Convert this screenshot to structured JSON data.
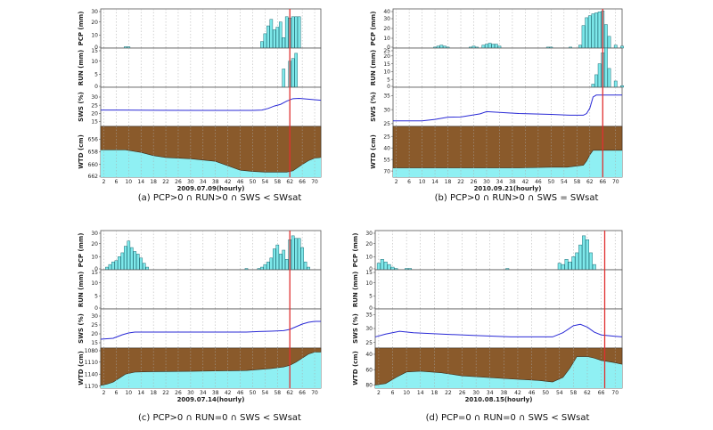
{
  "colors": {
    "bar_fill": "#7ee8ea",
    "bar_stroke": "#1f6f78",
    "sws_line": "#2a2ad6",
    "soil": "#8a5a2b",
    "water": "#8ff0f3",
    "event_line": "#e03030",
    "grid": "#a8a8a8"
  },
  "chart_data": [
    {
      "type": "bar",
      "id": "a",
      "caption": "(a) PCP>0 ∩ RUN>0 ∩ SWS < SWsat",
      "xlabel": "2009.07.09(hourly)",
      "x_ticks": [
        "2",
        "6",
        "10",
        "14",
        "18",
        "22",
        "26",
        "30",
        "34",
        "38",
        "42",
        "46",
        "50",
        "54",
        "58",
        "62",
        "66",
        "70"
      ],
      "x_range": [
        1,
        72
      ],
      "event_hour": 62,
      "pcp": {
        "ylabel": "PCP (mm)",
        "ylim": [
          0,
          30
        ],
        "yticks": [
          "30",
          "20",
          "10",
          "0"
        ],
        "hours": [
          9,
          10,
          53,
          54,
          55,
          56,
          57,
          58,
          59,
          60,
          61,
          62,
          63,
          64,
          65
        ],
        "values": [
          1,
          1,
          5,
          11,
          17,
          22,
          14,
          16,
          20,
          8,
          24,
          23,
          24,
          24,
          24
        ]
      },
      "run": {
        "ylabel": "RUN (mm)",
        "ylim": [
          0,
          15
        ],
        "yticks": [
          "15",
          "10",
          "5",
          "0"
        ],
        "hours": [
          60,
          62,
          63,
          64
        ],
        "values": [
          7,
          10,
          11,
          13
        ]
      },
      "sws": {
        "ylabel": "SWS (%)",
        "ylim": [
          12,
          36
        ],
        "yticks": [
          "30",
          "25",
          "20",
          "15"
        ],
        "x": [
          1,
          8,
          20,
          32,
          50,
          53,
          55,
          57,
          59,
          61,
          63,
          65,
          72
        ],
        "y": [
          22,
          22,
          21.9,
          21.8,
          21.8,
          22,
          23,
          24.5,
          25.5,
          27.5,
          29,
          29.2,
          28
        ]
      },
      "wtd": {
        "ylabel": "WTD (cm)",
        "ylim": [
          654,
          662
        ],
        "yticks": [
          "656",
          "658",
          "660",
          "662"
        ],
        "x": [
          1,
          9,
          14,
          18,
          22,
          30,
          38,
          46,
          50,
          54,
          58,
          61,
          63,
          66,
          68,
          70,
          72
        ],
        "y": [
          657.7,
          657.7,
          658.1,
          658.6,
          658.9,
          659.1,
          659.5,
          660.9,
          661.1,
          661.2,
          661.2,
          661.2,
          661.0,
          660.0,
          659.4,
          659.0,
          658.9
        ]
      }
    },
    {
      "type": "bar",
      "id": "b",
      "caption": "(b) PCP>0 ∩ RUN>0 ∩ SWS = SWsat",
      "xlabel": "2010.09.21(hourly)",
      "x_ticks": [
        "2",
        "6",
        "10",
        "14",
        "18",
        "22",
        "26",
        "30",
        "34",
        "38",
        "42",
        "46",
        "50",
        "54",
        "58",
        "62",
        "66",
        "70"
      ],
      "x_range": [
        1,
        72
      ],
      "event_hour": 66,
      "pcp": {
        "ylabel": "PCP (mm)",
        "ylim": [
          0,
          40
        ],
        "yticks": [
          "40",
          "30",
          "20",
          "10",
          "0"
        ],
        "hours": [
          14,
          15,
          16,
          17,
          18,
          25,
          26,
          27,
          29,
          30,
          31,
          32,
          33,
          34,
          49,
          50,
          56,
          59,
          60,
          61,
          62,
          63,
          64,
          65,
          66,
          67,
          68,
          70,
          72
        ],
        "values": [
          1,
          2,
          3,
          2,
          1,
          1,
          2,
          1,
          3,
          4,
          5,
          4,
          4,
          2,
          1,
          1,
          1,
          3,
          23,
          31,
          33,
          35,
          36,
          37,
          38,
          24,
          12,
          3,
          2
        ]
      },
      "run": {
        "ylabel": "RUN (mm)",
        "ylim": [
          0,
          25
        ],
        "yticks": [
          "25",
          "20",
          "15",
          "10",
          "5",
          "0"
        ],
        "hours": [
          63,
          64,
          65,
          66,
          67,
          68,
          70,
          72
        ],
        "values": [
          2,
          8,
          15,
          22,
          25,
          12,
          4,
          1
        ]
      },
      "sws": {
        "ylabel": "SWS (%)",
        "ylim": [
          24,
          38
        ],
        "yticks": [
          "35",
          "30",
          "25"
        ],
        "x": [
          1,
          10,
          14,
          18,
          22,
          28,
          30,
          34,
          40,
          50,
          56,
          60,
          61,
          62,
          63,
          64,
          72
        ],
        "y": [
          26,
          26,
          26.5,
          27.3,
          27.4,
          28.5,
          29.3,
          29,
          28.6,
          28.3,
          28,
          28,
          28.6,
          30.5,
          34.5,
          35.2,
          35.2
        ]
      },
      "wtd": {
        "ylabel": "WTD (cm)",
        "ylim": [
          12,
          78
        ],
        "yticks": [
          "25",
          "40",
          "55",
          "70"
        ],
        "x": [
          1,
          10,
          20,
          30,
          40,
          50,
          55,
          58,
          60,
          61,
          62,
          63,
          64,
          65,
          72
        ],
        "y": [
          66,
          66,
          66,
          66,
          66,
          65,
          65,
          63.5,
          62.5,
          57,
          49,
          43,
          43,
          43,
          43
        ]
      }
    },
    {
      "type": "bar",
      "id": "c",
      "caption": "(c) PCP>0 ∩ RUN=0 ∩ SWS < SWsat",
      "xlabel": "2009.07.14(hourly)",
      "x_ticks": [
        "2",
        "6",
        "10",
        "14",
        "18",
        "22",
        "26",
        "30",
        "34",
        "38",
        "42",
        "46",
        "50",
        "54",
        "58",
        "62",
        "66",
        "70"
      ],
      "x_range": [
        1,
        72
      ],
      "event_hour": 62,
      "pcp": {
        "ylabel": "PCP (mm)",
        "ylim": [
          0,
          30
        ],
        "yticks": [
          "30",
          "20",
          "10",
          "0"
        ],
        "hours": [
          3,
          4,
          5,
          6,
          7,
          8,
          9,
          10,
          11,
          12,
          13,
          14,
          15,
          16,
          48,
          52,
          53,
          54,
          55,
          56,
          57,
          58,
          59,
          60,
          61,
          62,
          63,
          64,
          65,
          66,
          67,
          68
        ],
        "values": [
          2,
          4,
          6,
          7,
          10,
          13,
          18,
          22,
          17,
          14,
          12,
          9,
          5,
          2,
          1,
          1,
          2,
          4,
          6,
          9,
          16,
          19,
          12,
          15,
          8,
          23,
          26,
          24,
          24,
          17,
          6,
          2
        ]
      },
      "run": {
        "ylabel": "RUN (mm)",
        "ylim": [
          0,
          15
        ],
        "yticks": [
          "15",
          "10",
          "5",
          "0"
        ],
        "hours": [],
        "values": []
      },
      "sws": {
        "ylabel": "SWS (%)",
        "ylim": [
          12,
          34
        ],
        "yticks": [
          "30",
          "25",
          "20",
          "15"
        ],
        "x": [
          1,
          5,
          8,
          10,
          12,
          20,
          30,
          40,
          48,
          52,
          56,
          60,
          62,
          64,
          66,
          68,
          70,
          72
        ],
        "y": [
          17,
          17.5,
          19.5,
          20.5,
          21,
          21,
          21,
          21,
          21,
          21.3,
          21.5,
          21.8,
          22.5,
          24,
          25.5,
          26.5,
          27,
          27
        ]
      },
      "wtd": {
        "ylabel": "WTD (cm)",
        "ylim": [
          1075,
          1175
        ],
        "yticks": [
          "1080",
          "1110",
          "1140",
          "1170"
        ],
        "x": [
          1,
          3,
          5,
          7,
          9,
          12,
          16,
          30,
          48,
          56,
          60,
          62,
          64,
          66,
          68,
          70,
          72
        ],
        "y": [
          1168,
          1165,
          1160,
          1150,
          1140,
          1135,
          1134,
          1133,
          1131,
          1126,
          1122,
          1118,
          1110,
          1100,
          1090,
          1085,
          1085
        ]
      }
    },
    {
      "type": "bar",
      "id": "d",
      "caption": "(d) PCP=0 ∩ RUN=0 ∩ SWS < SWsat",
      "xlabel": "2010.08.15(hourly)",
      "x_ticks": [
        "2",
        "6",
        "10",
        "14",
        "18",
        "22",
        "26",
        "30",
        "34",
        "38",
        "42",
        "46",
        "50",
        "54",
        "58",
        "62",
        "66",
        "70"
      ],
      "x_range": [
        1,
        72
      ],
      "event_hour": 67,
      "pcp": {
        "ylabel": "PCP (mm)",
        "ylim": [
          0,
          30
        ],
        "yticks": [
          "30",
          "20",
          "10",
          "0"
        ],
        "hours": [
          2,
          3,
          4,
          5,
          6,
          7,
          10,
          11,
          39,
          54,
          55,
          56,
          57,
          58,
          59,
          60,
          61,
          62,
          63,
          64
        ],
        "values": [
          5,
          8,
          6,
          4,
          2,
          1,
          1,
          1,
          1,
          5,
          4,
          8,
          6,
          10,
          13,
          19,
          26,
          23,
          13,
          4
        ]
      },
      "run": {
        "ylabel": "RUN (mm)",
        "ylim": [
          0,
          15
        ],
        "yticks": [
          "15",
          "10",
          "5",
          "0"
        ],
        "hours": [],
        "values": []
      },
      "sws": {
        "ylabel": "SWS (%)",
        "ylim": [
          23,
          37
        ],
        "yticks": [
          "35",
          "30",
          "25"
        ],
        "x": [
          1,
          4,
          8,
          12,
          20,
          30,
          40,
          48,
          52,
          55,
          58,
          60,
          62,
          64,
          66,
          70,
          72
        ],
        "y": [
          27,
          28,
          29,
          28.5,
          28,
          27.5,
          27,
          27,
          27,
          28.5,
          31,
          31.5,
          30.5,
          28.7,
          27.7,
          27.2,
          27
        ]
      },
      "wtd": {
        "ylabel": "WTD (cm)",
        "ylim": [
          32,
          84
        ],
        "yticks": [
          "40",
          "60",
          "80"
        ],
        "x": [
          1,
          4,
          7,
          10,
          14,
          20,
          26,
          40,
          48,
          52,
          55,
          57,
          59,
          60,
          61,
          62,
          64,
          66,
          70,
          72
        ],
        "y": [
          80,
          78,
          70,
          63,
          62,
          64,
          68,
          72,
          74,
          76,
          70,
          58,
          43,
          43,
          43,
          43,
          45,
          48,
          51,
          53
        ]
      }
    }
  ]
}
